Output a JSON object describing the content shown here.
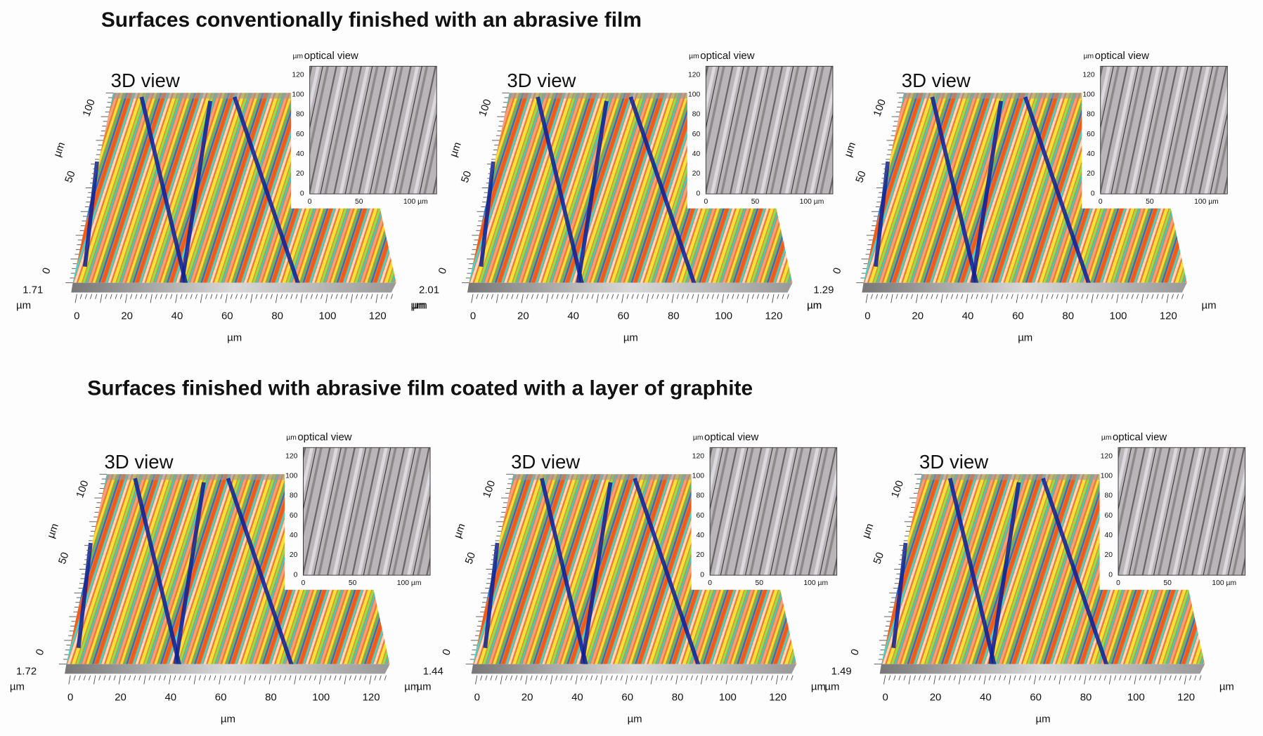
{
  "sections": [
    {
      "title": "Surfaces conventionally finished with an abrasive film",
      "panels": [
        {
          "z_max": "1.71"
        },
        {
          "z_max": "2.01"
        },
        {
          "z_max": "1.29"
        }
      ]
    },
    {
      "title": "Surfaces finished with abrasive film coated with a layer of graphite",
      "panels": [
        {
          "z_max": "1.72"
        },
        {
          "z_max": "1.44"
        },
        {
          "z_max": "1.49"
        }
      ]
    }
  ],
  "view_label": "3D view",
  "inset_label": "optical view",
  "unit": "µm",
  "x_ticks": [
    "0",
    "20",
    "40",
    "60",
    "80",
    "100",
    "120"
  ],
  "y_ticks": [
    "0",
    "50",
    "100"
  ],
  "inset_y_ticks": [
    "0",
    "20",
    "40",
    "60",
    "80",
    "100",
    "120"
  ],
  "inset_x_ticks": [
    "0",
    "50",
    "100 µm"
  ]
}
